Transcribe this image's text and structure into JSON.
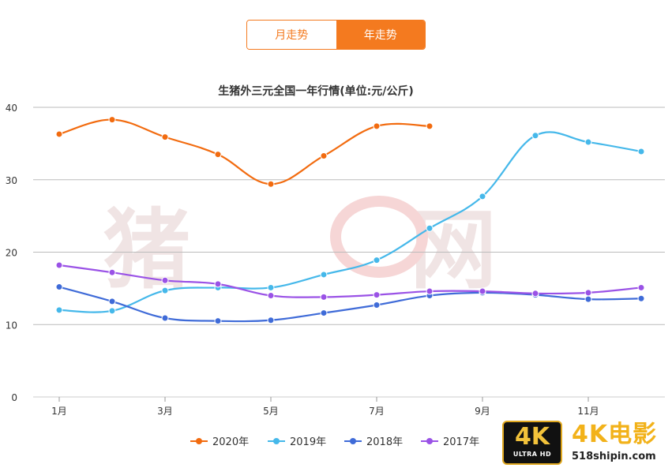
{
  "toggle": {
    "tabs": [
      {
        "label": "月走势",
        "active": false
      },
      {
        "label": "年走势",
        "active": true
      }
    ]
  },
  "chart_data": {
    "type": "line",
    "title": "生猪外三元全国一年行情(单位:元/公斤)",
    "xlabel": "",
    "ylabel": "",
    "ylim": [
      0,
      40
    ],
    "yticks": [
      0,
      10,
      20,
      30,
      40
    ],
    "x": [
      1,
      2,
      3,
      4,
      5,
      6,
      7,
      8,
      9,
      10,
      11,
      12
    ],
    "xtick_labels": [
      {
        "x": 1,
        "label": "1月"
      },
      {
        "x": 3,
        "label": "3月"
      },
      {
        "x": 5,
        "label": "5月"
      },
      {
        "x": 7,
        "label": "7月"
      },
      {
        "x": 9,
        "label": "9月"
      },
      {
        "x": 11,
        "label": "11月"
      }
    ],
    "series": [
      {
        "name": "2020年",
        "color": "#f26b0f",
        "values": [
          36.3,
          38.3,
          35.9,
          33.5,
          29.4,
          33.3,
          37.4,
          37.4,
          null,
          null,
          null,
          null
        ]
      },
      {
        "name": "2019年",
        "color": "#45b8ea",
        "values": [
          12.0,
          11.9,
          14.7,
          15.1,
          15.1,
          16.9,
          18.9,
          23.3,
          27.7,
          36.1,
          35.2,
          33.9
        ]
      },
      {
        "name": "2018年",
        "color": "#3f6bd8",
        "values": [
          15.2,
          13.2,
          10.9,
          10.5,
          10.6,
          11.6,
          12.7,
          14.0,
          14.4,
          14.1,
          13.5,
          13.6
        ]
      },
      {
        "name": "2017年",
        "color": "#9a52e6",
        "values": [
          18.2,
          17.2,
          16.1,
          15.6,
          14.0,
          13.8,
          14.1,
          14.6,
          14.6,
          14.3,
          14.4,
          15.1
        ]
      }
    ],
    "legend": "bottom-center",
    "grid": true
  },
  "watermark": {
    "text": "猪 网"
  },
  "badge": {
    "big": "4K",
    "small": "ULTRA HD",
    "title": "4K电影",
    "url": "518shipin.com"
  }
}
